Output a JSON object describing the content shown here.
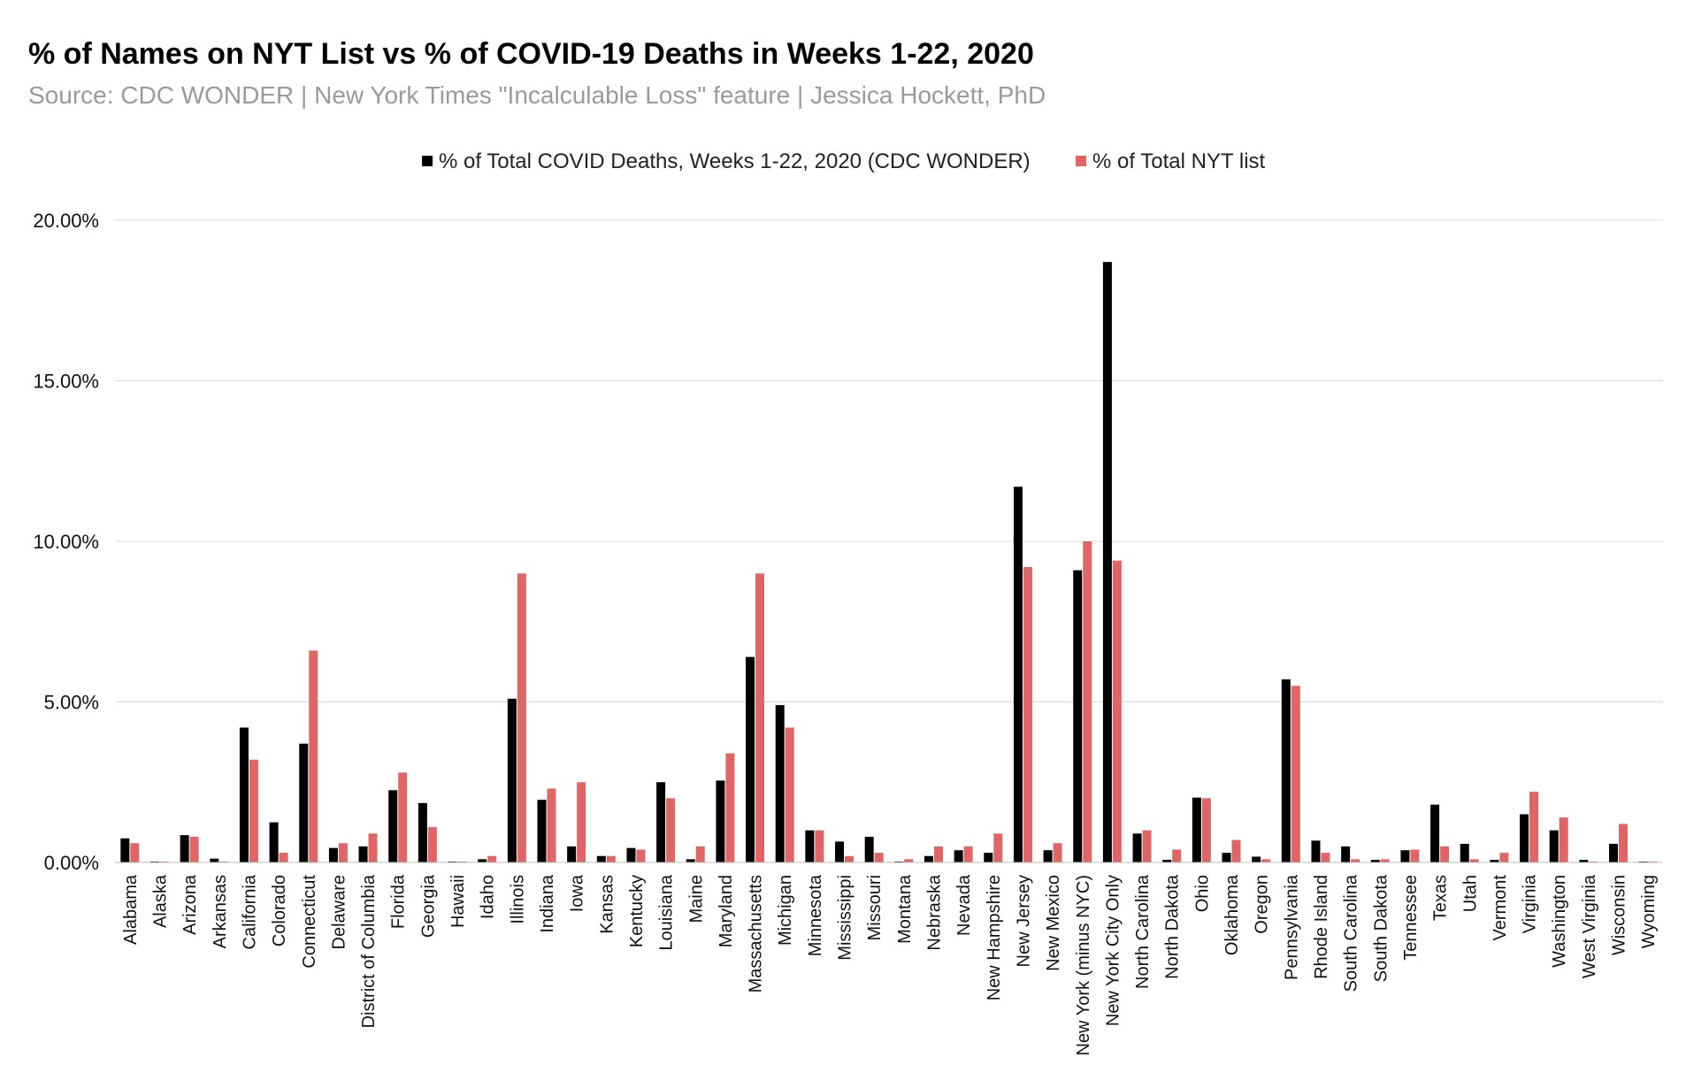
{
  "chart_data": {
    "type": "bar",
    "title": "% of Names on NYT List vs % of COVID-19 Deaths in Weeks 1-22, 2020",
    "subtitle": "Source: CDC WONDER | New York Times \"Incalculable Loss\" feature | Jessica Hockett, PhD",
    "xlabel": "",
    "ylabel": "",
    "ylim": [
      0,
      20
    ],
    "yticks": [
      "0.00%",
      "5.00%",
      "10.00%",
      "15.00%",
      "20.00%"
    ],
    "ytick_values": [
      0,
      5,
      10,
      15,
      20
    ],
    "grid": true,
    "legend_position": "top-center",
    "categories": [
      "Alabama",
      "Alaska",
      "Arizona",
      "Arkansas",
      "California",
      "Colorado",
      "Connecticut",
      "Delaware",
      "District of Columbia",
      "Florida",
      "Georgia",
      "Hawaii",
      "Idaho",
      "Illinois",
      "Indiana",
      "Iowa",
      "Kansas",
      "Kentucky",
      "Louisiana",
      "Maine",
      "Maryland",
      "Massachusetts",
      "Michigan",
      "Minnesota",
      "Mississippi",
      "Missouri",
      "Montana",
      "Nebraska",
      "Nevada",
      "New Hampshire",
      "New Jersey",
      "New Mexico",
      "New York (minus NYC)",
      "New York City Only",
      "North Carolina",
      "North Dakota",
      "Ohio",
      "Oklahoma",
      "Oregon",
      "Pennsylvania",
      "Rhode Island",
      "South Carolina",
      "South Dakota",
      "Tennessee",
      "Texas",
      "Utah",
      "Vermont",
      "Virginia",
      "Washington",
      "West Virginia",
      "Wisconsin",
      "Wyoming"
    ],
    "series": [
      {
        "name": "% of Total COVID Deaths, Weeks 1-22, 2020 (CDC WONDER)",
        "color": "#000000",
        "values": [
          0.75,
          0.02,
          0.85,
          0.12,
          4.2,
          1.25,
          3.7,
          0.45,
          0.5,
          2.25,
          1.85,
          0.02,
          0.1,
          5.1,
          1.95,
          0.5,
          0.2,
          0.45,
          2.5,
          0.1,
          2.55,
          6.4,
          4.9,
          1.0,
          0.65,
          0.8,
          0.02,
          0.2,
          0.38,
          0.3,
          11.7,
          0.38,
          9.1,
          18.7,
          0.9,
          0.08,
          2.02,
          0.3,
          0.18,
          5.7,
          0.68,
          0.5,
          0.08,
          0.38,
          1.8,
          0.58,
          0.08,
          1.5,
          1.0,
          0.08,
          0.58,
          0.02
        ]
      },
      {
        "name": "% of Total NYT list",
        "color": "#e06666",
        "values": [
          0.6,
          0.02,
          0.8,
          0.02,
          3.2,
          0.3,
          6.6,
          0.6,
          0.9,
          2.8,
          1.1,
          0.02,
          0.2,
          9.0,
          2.3,
          2.5,
          0.2,
          0.4,
          2.0,
          0.5,
          3.4,
          9.0,
          4.2,
          1.0,
          0.2,
          0.3,
          0.1,
          0.5,
          0.5,
          0.9,
          9.2,
          0.6,
          10.0,
          9.4,
          1.0,
          0.4,
          2.0,
          0.7,
          0.1,
          5.5,
          0.3,
          0.1,
          0.1,
          0.4,
          0.5,
          0.1,
          0.3,
          2.2,
          1.4,
          0.02,
          1.2,
          0.02
        ]
      }
    ]
  }
}
